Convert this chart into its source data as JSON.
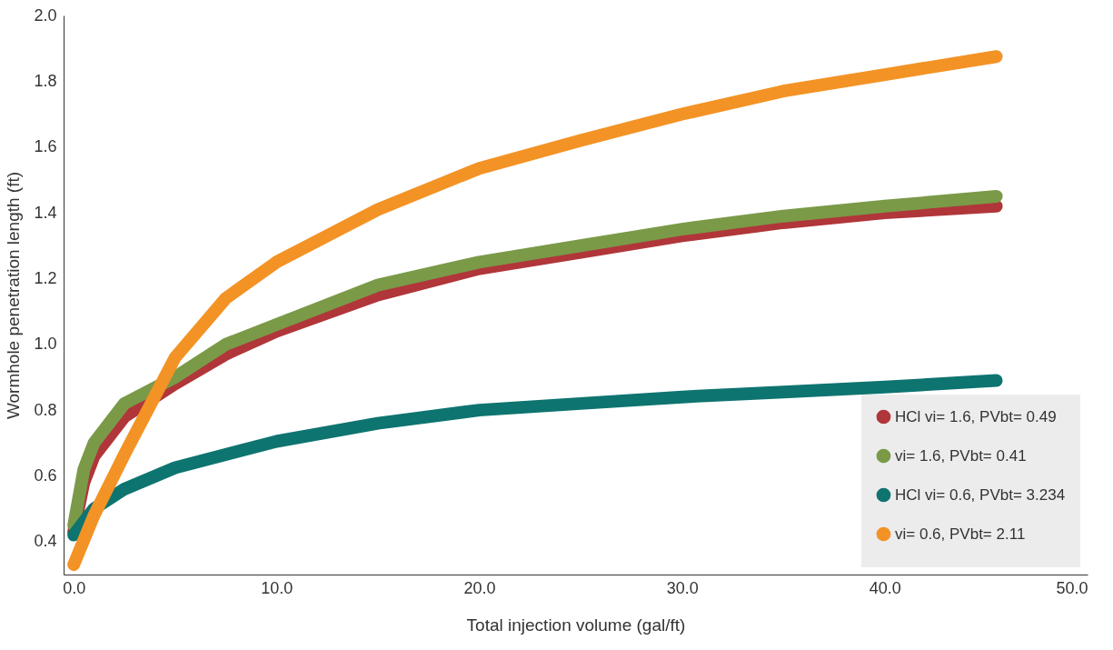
{
  "chart_data": {
    "type": "line",
    "xlabel": "Total injection volume (gal/ft)",
    "ylabel": "Wormhole penetration length (ft)",
    "xlim": [
      -0.5,
      50
    ],
    "xticks": [
      {
        "value": 0,
        "label": "0.0"
      },
      {
        "value": 10,
        "label": "10.0"
      },
      {
        "value": 20,
        "label": "20.0"
      },
      {
        "value": 30,
        "label": "30.0"
      },
      {
        "value": 40,
        "label": "40.0"
      },
      {
        "value": 50,
        "label": "50.0"
      }
    ],
    "ylim": [
      0.3,
      2.0
    ],
    "yticks": [
      0.4,
      0.6,
      0.8,
      {
        "value": 1.0,
        "label": "1.0"
      },
      1.2,
      1.4,
      1.6,
      1.8,
      {
        "value": 2.0,
        "label": "2.0"
      }
    ],
    "legend": "bottom right",
    "grid": false,
    "marker": "none",
    "line_style": "solid",
    "series": [
      {
        "name": "HCl vi= 1.6, PVbt= 0.49",
        "color": "#b0363a",
        "x": [
          0,
          0.5,
          1,
          2.5,
          5,
          7.5,
          10,
          15,
          20,
          25,
          30,
          35,
          40,
          45.5
        ],
        "values": [
          0.43,
          0.58,
          0.66,
          0.78,
          0.88,
          0.97,
          1.04,
          1.15,
          1.23,
          1.28,
          1.33,
          1.37,
          1.4,
          1.42
        ]
      },
      {
        "name": "vi= 1.6, PVbt= 0.41",
        "color": "#7a9a48",
        "x": [
          0,
          0.5,
          1,
          2.5,
          5,
          7.5,
          10,
          15,
          20,
          25,
          30,
          35,
          40,
          45.5
        ],
        "values": [
          0.45,
          0.62,
          0.7,
          0.82,
          0.9,
          1.0,
          1.06,
          1.18,
          1.25,
          1.3,
          1.35,
          1.39,
          1.42,
          1.45
        ]
      },
      {
        "name": "HCl vi= 0.6, PVbt= 3.234",
        "color": "#0e7470",
        "x": [
          0,
          1,
          2.5,
          5,
          10,
          15,
          20,
          25,
          30,
          35,
          40,
          45.5
        ],
        "values": [
          0.42,
          0.5,
          0.56,
          0.625,
          0.705,
          0.76,
          0.8,
          0.82,
          0.84,
          0.855,
          0.87,
          0.89
        ]
      },
      {
        "name": "vi= 0.6, PVbt= 2.11",
        "color": "#f39325",
        "x": [
          0,
          1,
          2.5,
          5,
          7.5,
          10,
          15,
          20,
          25,
          30,
          35,
          40,
          45.5
        ],
        "values": [
          0.33,
          0.48,
          0.665,
          0.96,
          1.14,
          1.25,
          1.41,
          1.535,
          1.62,
          1.7,
          1.77,
          1.82,
          1.875
        ]
      }
    ]
  }
}
